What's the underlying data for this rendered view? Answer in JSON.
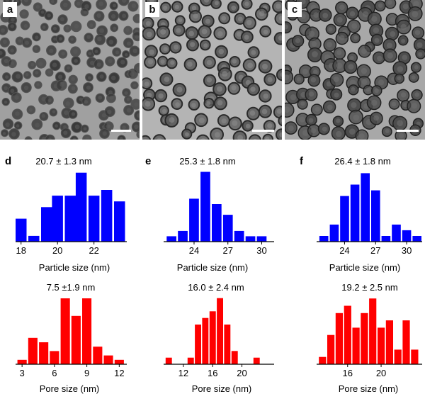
{
  "tem_panels": [
    {
      "label": "a",
      "particle_style": "dense-dark"
    },
    {
      "label": "b",
      "particle_style": "light-rim"
    },
    {
      "label": "c",
      "particle_style": "aggregated-dark"
    }
  ],
  "panel_letters": [
    "d",
    "e",
    "f"
  ],
  "colors": {
    "particle_bars": "#0000ff",
    "pore_bars": "#ff0000",
    "tem_background": "#9c9c9c"
  },
  "chart_data": [
    {
      "id": "d-particle",
      "type": "bar",
      "title": "20.7 ± 1.3 nm",
      "xlabel": "Particle size (nm)",
      "x": [
        18,
        18.7,
        19.4,
        20,
        20.7,
        21.3,
        22,
        22.7,
        23.4
      ],
      "y": [
        4,
        1,
        6,
        8,
        8,
        12,
        8,
        9,
        7
      ],
      "xticks": [
        18,
        20,
        22
      ],
      "xlim": [
        17.7,
        23.8
      ],
      "ylim": [
        0,
        12.7
      ]
    },
    {
      "id": "e-particle",
      "type": "bar",
      "title": "25.3 ± 1.8 nm",
      "xlabel": "Particle size (nm)",
      "x": [
        22,
        23,
        24,
        25,
        26,
        27,
        28,
        29,
        30
      ],
      "y": [
        1,
        2,
        8,
        13,
        7,
        5,
        2,
        1,
        1
      ],
      "xticks": [
        24,
        27,
        30
      ],
      "xlim": [
        21.3,
        31.1
      ],
      "ylim": [
        0,
        13.6
      ]
    },
    {
      "id": "f-particle",
      "type": "bar",
      "title": "26.4 ± 1.8 nm",
      "xlabel": "Particle size (nm)",
      "x": [
        22,
        23,
        24,
        25,
        26,
        27,
        28,
        29,
        30,
        31
      ],
      "y": [
        1,
        3,
        8,
        10,
        12,
        9,
        1,
        3,
        2,
        1
      ],
      "xticks": [
        24,
        27,
        30
      ],
      "xlim": [
        21.3,
        31.5
      ],
      "ylim": [
        0,
        12.8
      ]
    },
    {
      "id": "d-pore",
      "type": "bar",
      "title": "7.5 ±1.9 nm",
      "xlabel": "Pore size (nm)",
      "x": [
        3,
        4,
        5,
        6,
        7,
        8,
        9,
        10,
        11,
        12
      ],
      "y": [
        1,
        6,
        5,
        3,
        15,
        11,
        15,
        4,
        2,
        1
      ],
      "xticks": [
        3,
        6,
        9,
        12
      ],
      "xlim": [
        2.4,
        12.7
      ],
      "ylim": [
        0,
        15.8
      ]
    },
    {
      "id": "e-pore",
      "type": "bar",
      "title": "16.0 ± 2.4 nm",
      "xlabel": "Pore size (nm)",
      "x": [
        10,
        11,
        12,
        13,
        14,
        15,
        16,
        17,
        18,
        19,
        20,
        21,
        22,
        23
      ],
      "y": [
        1,
        0,
        0,
        1,
        6,
        7,
        8,
        10,
        6,
        2,
        0,
        0,
        1,
        0
      ],
      "xticks": [
        12,
        16,
        20
      ],
      "xlim": [
        9.3,
        24.4
      ],
      "ylim": [
        0,
        10.5
      ]
    },
    {
      "id": "f-pore",
      "type": "bar",
      "title": "19.2 ± 2.5 nm",
      "xlabel": "Pore size (nm)",
      "x": [
        13,
        14,
        15,
        16,
        17,
        18,
        19,
        20,
        21,
        22,
        23,
        24
      ],
      "y": [
        1,
        4,
        7,
        8,
        5,
        7,
        9,
        5,
        6,
        2,
        6,
        2
      ],
      "xticks": [
        16,
        20
      ],
      "xlim": [
        12.3,
        24.9
      ],
      "ylim": [
        0,
        9.5
      ]
    }
  ]
}
